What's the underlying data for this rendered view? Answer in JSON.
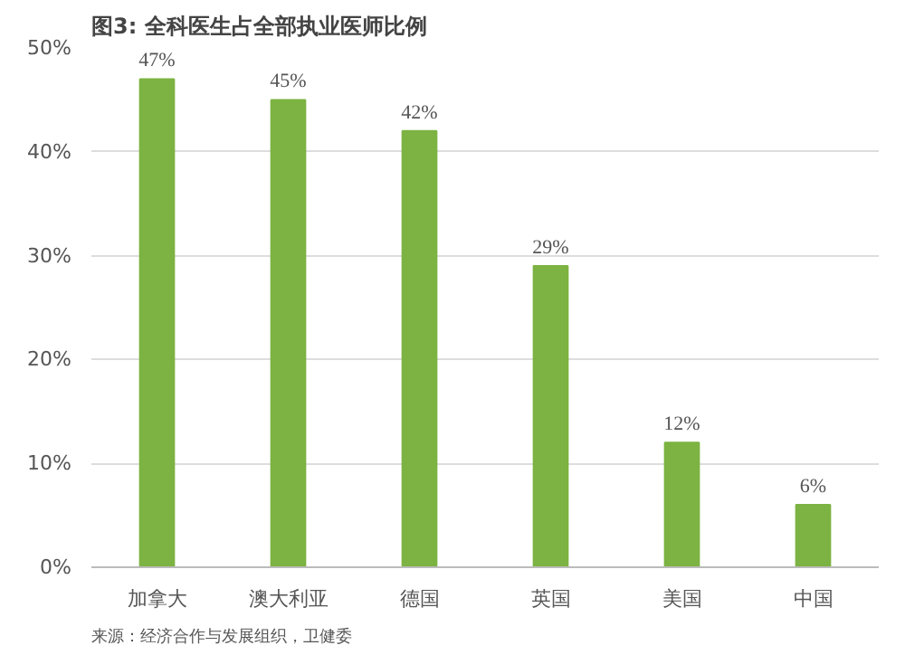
{
  "chart_data": {
    "type": "bar",
    "title": "图3: 全科医生占全部执业医师比例",
    "categories": [
      "加拿大",
      "澳大利亚",
      "德国",
      "英国",
      "美国",
      "中国"
    ],
    "values": [
      47,
      45,
      42,
      29,
      12,
      6
    ],
    "value_labels": [
      "47%",
      "45%",
      "42%",
      "29%",
      "12%",
      "6%"
    ],
    "color": "#7cb342",
    "ylim": [
      0,
      50
    ],
    "yticks": [
      {
        "value": 0,
        "label": "0%"
      },
      {
        "value": 10,
        "label": "10%"
      },
      {
        "value": 20,
        "label": "20%"
      },
      {
        "value": 30,
        "label": "30%"
      },
      {
        "value": 40,
        "label": "40%"
      },
      {
        "value": 50,
        "label": "50%"
      }
    ],
    "grid": "y",
    "annotations": [
      "来源：经济合作与发展组织，卫健委"
    ]
  }
}
